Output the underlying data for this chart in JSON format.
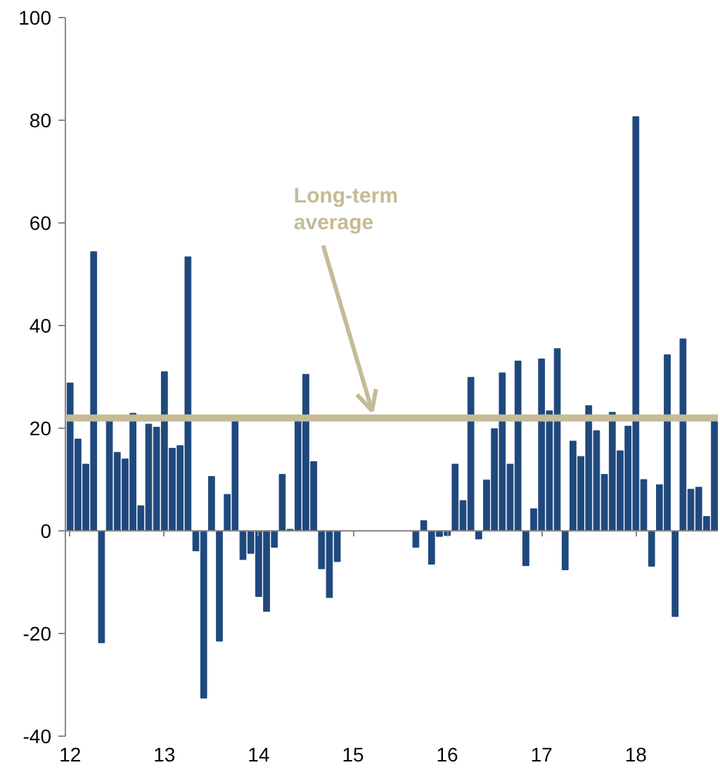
{
  "chart_data": {
    "type": "bar",
    "x": [
      12,
      12.0833,
      12.1667,
      12.25,
      12.3333,
      12.4167,
      12.5,
      12.5833,
      12.6667,
      12.75,
      12.8333,
      12.9167,
      13,
      13.0833,
      13.1667,
      13.25,
      13.3333,
      13.4167,
      13.5,
      13.5833,
      13.6667,
      13.75,
      13.8333,
      13.9167,
      14,
      14.0833,
      14.1667,
      14.25,
      14.3333,
      14.4167,
      14.5,
      14.5833,
      14.6667,
      14.75,
      14.8333,
      14.9167,
      15,
      15.0833,
      15.1667,
      15.25,
      15.3333,
      15.4167,
      15.5,
      15.5833,
      15.6667,
      15.75,
      15.8333,
      15.9167,
      16,
      16.0833,
      16.1667,
      16.25,
      16.3333,
      16.4167,
      16.5,
      16.5833,
      16.6667,
      16.75,
      16.8333,
      16.9167,
      17,
      17.0833,
      17.1667,
      17.25,
      17.3333,
      17.4167,
      17.5,
      17.5833,
      17.6667,
      17.75,
      17.8333,
      17.9167,
      18,
      18.0833,
      18.1667,
      18.25,
      18.3333,
      18.4167,
      18.5,
      18.5833,
      18.6667,
      18.75,
      18.8333
    ],
    "values": [
      28.8,
      17.9,
      13,
      54.4,
      -21.8,
      21.5,
      15.3,
      14,
      22.9,
      4.9,
      20.8,
      20.2,
      31,
      16.1,
      16.6,
      53.4,
      -3.9,
      -32.6,
      10.6,
      -21.5,
      7.1,
      22.2,
      -5.6,
      -4.4,
      -12.8,
      -15.7,
      -3.2,
      11,
      0.3,
      21.5,
      30.5,
      13.5,
      -7.4,
      -13,
      -6,
      null,
      null,
      null,
      null,
      null,
      null,
      null,
      null,
      null,
      -3.2,
      2,
      -6.5,
      -1.1,
      -0.9,
      13,
      5.9,
      29.9,
      -1.6,
      9.9,
      19.9,
      30.8,
      13,
      33.1,
      -6.8,
      4.3,
      33.5,
      23.4,
      35.5,
      -7.6,
      17.5,
      14.5,
      24.4,
      19.5,
      11,
      23.1,
      15.6,
      20.4,
      80.7,
      10,
      -6.9,
      9,
      34.3,
      -16.7,
      37.4,
      8.1,
      8.5,
      2.8,
      21.4
    ],
    "color": "#1f497d",
    "xlim": [
      11.95,
      18.87
    ],
    "xticks": [
      12,
      13,
      14,
      15,
      16,
      17,
      18
    ],
    "ylim": [
      -40,
      100
    ],
    "yticks": [
      -40,
      -20,
      0,
      20,
      40,
      60,
      80,
      100
    ],
    "ref_lines": [
      {
        "axis": "y",
        "value": 22,
        "color": "#c4bc96",
        "label": "Long-term average"
      }
    ]
  }
}
